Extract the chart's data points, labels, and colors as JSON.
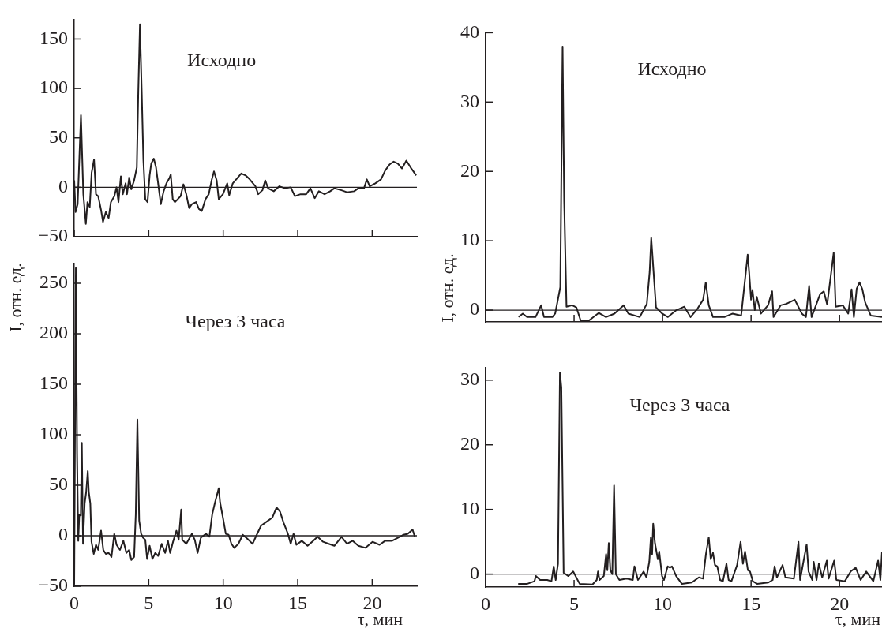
{
  "chart_data": [
    {
      "type": "line",
      "annotations": [
        "Исходно"
      ],
      "ref_lines": [
        {
          "axis": "y",
          "value": 0
        }
      ],
      "xlim": [
        0,
        23
      ],
      "xticks": [
        0,
        5,
        10,
        15,
        20
      ],
      "ylim": [
        -50,
        170
      ],
      "yticks": [
        {
          "value": -50,
          "label": "−50"
        },
        0,
        50,
        100,
        150
      ],
      "tick_labels": "y",
      "color": "#231f20",
      "x": [
        0,
        0.09,
        0.23,
        0.45,
        0.61,
        0.78,
        0.89,
        1.04,
        1.17,
        1.33,
        1.46,
        1.61,
        1.8,
        1.93,
        2.12,
        2.31,
        2.46,
        2.69,
        2.84,
        2.97,
        3.13,
        3.26,
        3.45,
        3.54,
        3.69,
        3.83,
        4.02,
        4.2,
        4.3,
        4.41,
        4.53,
        4.64,
        4.77,
        4.92,
        5.06,
        5.17,
        5.34,
        5.49,
        5.63,
        5.81,
        6.0,
        6.19,
        6.38,
        6.48,
        6.61,
        6.76,
        6.95,
        7.14,
        7.33,
        7.52,
        7.71,
        7.9,
        8.18,
        8.37,
        8.56,
        8.81,
        9.03,
        9.22,
        9.38,
        9.56,
        9.7,
        9.98,
        10.27,
        10.4,
        10.64,
        10.93,
        11.21,
        11.5,
        11.78,
        12.16,
        12.35,
        12.63,
        12.82,
        13.01,
        13.39,
        13.77,
        14.15,
        14.53,
        14.81,
        15.19,
        15.57,
        15.85,
        16.14,
        16.42,
        16.8,
        17.18,
        17.46,
        17.94,
        18.31,
        18.79,
        19.07,
        19.45,
        19.64,
        19.83,
        20.21,
        20.59,
        20.87,
        21.16,
        21.44,
        21.72,
        22.0,
        22.29,
        22.58,
        22.77,
        22.95
      ],
      "values": [
        7,
        -25,
        -17,
        73,
        -7,
        -37,
        -15,
        -20,
        15,
        28,
        -7,
        -9,
        -23,
        -35,
        -25,
        -31,
        -15,
        -9,
        0,
        -15,
        11,
        -7,
        4,
        -7,
        10,
        -2,
        7,
        20,
        97,
        165,
        97,
        28,
        -12,
        -15,
        12,
        24,
        29,
        20,
        4,
        -17,
        -4,
        4,
        9,
        13,
        -12,
        -15,
        -12,
        -9,
        3,
        -7,
        -21,
        -17,
        -15,
        -22,
        -24,
        -12,
        -7,
        7,
        16,
        7,
        -12,
        -7,
        4,
        -8,
        4,
        9,
        14,
        12,
        8,
        1,
        -7,
        -3,
        7,
        -1,
        -4,
        1,
        -1,
        0,
        -9,
        -7,
        -7,
        -1,
        -11,
        -4,
        -7,
        -4,
        -1,
        -3,
        -5,
        -4,
        -1,
        -1,
        8,
        1,
        4,
        8,
        17,
        23,
        26,
        24,
        19,
        27,
        20,
        16,
        12
      ]
    },
    {
      "type": "line",
      "annotations": [
        "Исходно"
      ],
      "ylabel": "I, отн. ед.",
      "ref_lines": [
        {
          "axis": "y",
          "value": 0
        }
      ],
      "xlim": [
        0,
        22.4
      ],
      "xticks": [
        0,
        5,
        10,
        15,
        20
      ],
      "ylim": [
        -1.7,
        40
      ],
      "yticks": [
        0,
        10,
        20,
        30,
        40
      ],
      "tick_labels": "y",
      "color": "#231f20",
      "x": [
        1.86,
        2.1,
        2.34,
        2.82,
        3.14,
        3.3,
        3.77,
        3.93,
        4.22,
        4.35,
        4.44,
        4.57,
        4.89,
        5.13,
        5.37,
        5.84,
        6.4,
        6.8,
        7.28,
        7.8,
        8.07,
        8.71,
        9.11,
        9.27,
        9.36,
        9.47,
        9.63,
        9.98,
        10.3,
        10.78,
        11.23,
        11.58,
        11.97,
        12.29,
        12.44,
        12.61,
        12.85,
        13.49,
        13.96,
        14.44,
        14.81,
        14.89,
        15.0,
        15.08,
        15.21,
        15.32,
        15.56,
        15.96,
        16.19,
        16.27,
        16.67,
        16.99,
        17.47,
        17.87,
        18.1,
        18.28,
        18.42,
        18.9,
        19.11,
        19.3,
        19.67,
        19.78,
        20.18,
        20.49,
        20.68,
        20.81,
        20.97,
        21.13,
        21.29,
        21.45,
        21.77,
        22.4
      ],
      "values": [
        -1,
        -0.5,
        -1,
        -1,
        0.7,
        -1,
        -1,
        -0.5,
        3.3,
        38,
        15.7,
        0.5,
        0.7,
        0.4,
        -1.5,
        -1.5,
        -0.4,
        -1,
        -0.5,
        0.7,
        -0.5,
        -1,
        0.9,
        5.5,
        10.4,
        6.3,
        0.4,
        -0.5,
        -1,
        0,
        0.5,
        -1,
        0.2,
        1.5,
        4,
        0.7,
        -1,
        -1,
        -0.5,
        -0.8,
        8,
        5.5,
        1.5,
        2.9,
        0,
        1.9,
        -0.5,
        0.7,
        2.7,
        -1,
        0.7,
        0.9,
        1.5,
        -0.5,
        -1,
        3.5,
        -1,
        2.3,
        2.7,
        0.8,
        8.3,
        0.5,
        0.7,
        -0.5,
        3,
        -1,
        3.1,
        4,
        3,
        1.1,
        -0.8,
        -1
      ]
    },
    {
      "type": "line",
      "annotations": [
        "Через 3 часа"
      ],
      "ylabel": "I, отн. ед.",
      "xlabel": "τ, мин",
      "ref_lines": [
        {
          "axis": "y",
          "value": 0
        }
      ],
      "xlim": [
        0,
        23
      ],
      "xticks": [
        0,
        5,
        10,
        15,
        20
      ],
      "ylim": [
        -50,
        270
      ],
      "yticks": [
        {
          "value": -50,
          "label": "−50"
        },
        0,
        50,
        100,
        150,
        200,
        250
      ],
      "color": "#231f20",
      "x": [
        0,
        0.11,
        0.19,
        0.27,
        0.34,
        0.44,
        0.51,
        0.59,
        0.7,
        0.8,
        0.91,
        0.98,
        1.08,
        1.16,
        1.31,
        1.46,
        1.61,
        1.8,
        1.95,
        2.12,
        2.31,
        2.5,
        2.69,
        2.84,
        3.07,
        3.3,
        3.5,
        3.69,
        3.83,
        4.02,
        4.13,
        4.24,
        4.36,
        4.49,
        4.62,
        4.77,
        4.89,
        5.06,
        5.25,
        5.44,
        5.63,
        5.87,
        6.1,
        6.29,
        6.44,
        6.63,
        6.86,
        7.01,
        7.18,
        7.25,
        7.52,
        7.9,
        8.09,
        8.28,
        8.5,
        8.84,
        9.07,
        9.26,
        9.45,
        9.7,
        9.79,
        9.98,
        10.17,
        10.36,
        10.55,
        10.74,
        11.02,
        11.31,
        11.69,
        11.97,
        12.25,
        12.54,
        12.92,
        13.3,
        13.58,
        13.81,
        14.05,
        14.34,
        14.53,
        14.72,
        14.91,
        15.28,
        15.66,
        16.04,
        16.33,
        16.7,
        17.08,
        17.46,
        17.94,
        18.31,
        18.69,
        19.07,
        19.55,
        20.02,
        20.49,
        20.87,
        21.34,
        21.72,
        22.1,
        22.39,
        22.71,
        22.86
      ],
      "values": [
        -48,
        265,
        81,
        -5,
        21,
        20,
        92,
        -8,
        32,
        43,
        64,
        43,
        32,
        -6,
        -18,
        -9,
        -14,
        5,
        -14,
        -18,
        -17,
        -21,
        2,
        -9,
        -14,
        -5,
        -17,
        -14,
        -24,
        -21,
        21,
        115,
        15,
        2,
        -2,
        -4,
        -23,
        -10,
        -23,
        -17,
        -20,
        -8,
        -17,
        -5,
        -17,
        -6,
        5,
        -4,
        26,
        -4,
        -8,
        2,
        -4,
        -17,
        -2,
        2,
        -1,
        21,
        33,
        47,
        33,
        18,
        2,
        1,
        -8,
        -12,
        -8,
        1,
        -4,
        -8,
        1,
        10,
        14,
        18,
        28,
        24,
        13,
        2,
        -8,
        2,
        -9,
        -5,
        -10,
        -5,
        -1,
        -6,
        -8,
        -10,
        -1,
        -8,
        -5,
        -10,
        -12,
        -6,
        -9,
        -5,
        -5,
        -2,
        1,
        2,
        6,
        -1
      ]
    },
    {
      "type": "line",
      "annotations": [
        "Через 3 часа"
      ],
      "xlabel": "τ, мин",
      "ref_lines": [
        {
          "axis": "y",
          "value": 0
        }
      ],
      "xlim": [
        0,
        22.4
      ],
      "xticks": [
        0,
        5,
        10,
        15,
        20
      ],
      "ylim": [
        -2,
        32
      ],
      "yticks": [
        0,
        10,
        20,
        30
      ],
      "color": "#231f20",
      "x": [
        1.84,
        2.36,
        2.76,
        2.84,
        3.08,
        3.48,
        3.72,
        3.85,
        3.96,
        4.09,
        4.2,
        4.28,
        4.41,
        4.68,
        4.95,
        5.16,
        5.32,
        6.04,
        6.28,
        6.35,
        6.44,
        6.68,
        6.81,
        6.88,
        6.96,
        7.05,
        7.16,
        7.26,
        7.36,
        7.56,
        7.96,
        8.32,
        8.41,
        8.61,
        8.93,
        9.09,
        9.25,
        9.34,
        9.41,
        9.47,
        9.57,
        9.73,
        9.81,
        9.97,
        10.08,
        10.29,
        10.42,
        10.53,
        10.77,
        11.09,
        11.65,
        12.05,
        12.29,
        12.45,
        12.61,
        12.72,
        12.85,
        12.96,
        13.09,
        13.25,
        13.41,
        13.61,
        13.73,
        13.89,
        14.21,
        14.41,
        14.54,
        14.66,
        14.82,
        14.94,
        15.1,
        15.34,
        15.98,
        16.22,
        16.33,
        16.46,
        16.78,
        16.94,
        17.42,
        17.68,
        17.77,
        18.14,
        18.25,
        18.46,
        18.54,
        18.7,
        18.83,
        19.02,
        19.28,
        19.38,
        19.7,
        19.82,
        20.3,
        20.63,
        20.91,
        21.19,
        21.51,
        21.91,
        22.18,
        22.31,
        22.4
      ],
      "values": [
        -1.5,
        -1.5,
        -1.1,
        -0.3,
        -0.9,
        -0.9,
        -1.1,
        1.2,
        -0.9,
        1.6,
        31.2,
        28.9,
        0.2,
        -0.3,
        0.4,
        -0.7,
        -1.5,
        -1.6,
        -0.9,
        0.4,
        -0.9,
        -0.3,
        3.1,
        0.6,
        4.8,
        0.6,
        0,
        13.7,
        0,
        -0.9,
        -0.7,
        -0.9,
        1.2,
        -0.9,
        0.4,
        -0.5,
        1.9,
        5.7,
        3.1,
        7.8,
        4.8,
        2.3,
        3.5,
        -0.3,
        -0.9,
        1.2,
        1,
        1.2,
        -0.3,
        -1.5,
        -1.3,
        -0.5,
        -0.7,
        3.1,
        5.7,
        2.3,
        3.3,
        1.4,
        1.2,
        -0.9,
        -1.1,
        1.6,
        -0.9,
        -1.1,
        1.4,
        5,
        1.6,
        3.5,
        0.6,
        0.4,
        -1.1,
        -1.5,
        -1.3,
        -0.9,
        1.2,
        -0.5,
        1.4,
        -0.5,
        -0.7,
        5,
        -0.9,
        4.6,
        0.4,
        -0.9,
        1.9,
        -0.9,
        1.6,
        -0.5,
        2.1,
        -0.7,
        2.1,
        -0.9,
        -1.1,
        0.4,
        1,
        -0.9,
        0.4,
        -1.1,
        2.1,
        -0.9,
        3.5
      ]
    }
  ]
}
